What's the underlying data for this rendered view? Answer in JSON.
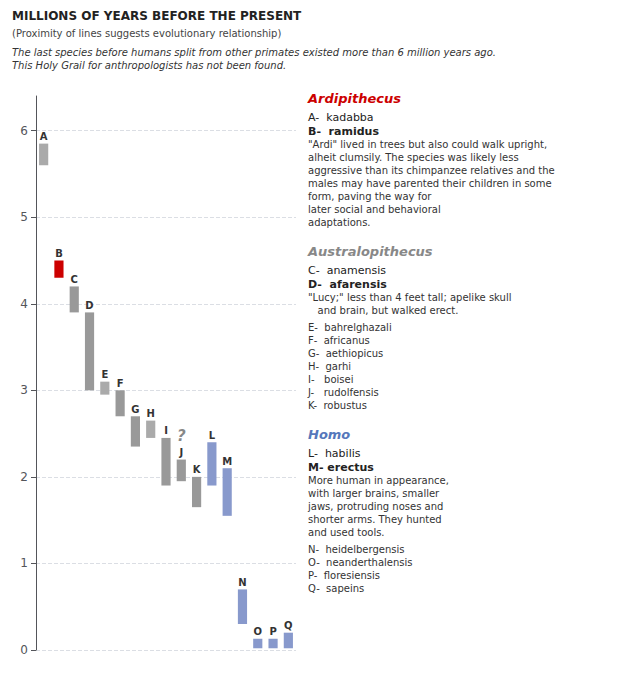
{
  "chart_data": {
    "type": "bar",
    "title": "MILLIONS OF YEARS BEFORE THE PRESENT",
    "subtitle": "(Proximity of lines suggests evolutionary relationship)",
    "categories": [
      "A",
      "B",
      "C",
      "D",
      "E",
      "F",
      "G",
      "H",
      "I",
      "J",
      "K",
      "L",
      "M",
      "N",
      "O",
      "P",
      "Q"
    ],
    "bottoms": [
      5.6,
      4.3,
      3.9,
      3.0,
      2.95,
      2.7,
      2.35,
      2.45,
      1.9,
      1.95,
      1.65,
      1.9,
      1.55,
      0.3,
      0.02,
      0.02,
      0.02
    ],
    "values": [
      5.85,
      4.5,
      4.2,
      3.9,
      3.1,
      3.0,
      2.7,
      2.65,
      2.45,
      2.2,
      2.0,
      2.4,
      2.1,
      0.7,
      0.13,
      0.13,
      0.2
    ],
    "colors": [
      "#aaaaaa",
      "#cc0000",
      "#999999",
      "#999999",
      "#aaaaaa",
      "#999999",
      "#999999",
      "#aaaaaa",
      "#999999",
      "#999999",
      "#999999",
      "#8899cc",
      "#8899cc",
      "#8899cc",
      "#8899cc",
      "#8899cc",
      "#8899cc"
    ],
    "ylim": [
      0,
      6.4
    ],
    "yticks": [
      0,
      1,
      2,
      3,
      4,
      5,
      6
    ],
    "grid": true,
    "tick_labels": "y",
    "groups": [
      {
        "name": "Ardipithecus",
        "color": "#cc0000",
        "lines": [
          "A-  kadabba",
          "B-  ramidus",
          "\"Ardi\" lived in trees but also could walk upright,\nalheit clumsily. The species was likely less\naggressive than its chimpanzee relatives and the\nmales may have parented their children in some\nform, paving the way for\nlater social and behavioral\nadaptations."
        ]
      },
      {
        "name": "Australopithecus",
        "color": "#888888",
        "lines": [
          "C-  anamensis",
          "D-  afarensis",
          "\"Lucy;\" less than 4 feet tall; apelike skull\n   and brain, but walked erect.",
          "E-  bahrelghazali\nF-  africanus\nG-  aethiopicus\nH-  garhi\nI-   boisei\nJ-   rudolfensis\nK-  robustus"
        ]
      },
      {
        "name": "Homo",
        "color": "#5577bb",
        "lines": [
          "L-  habilis",
          "M- erectus",
          "More human in appearance,\nwith larger brains, smaller\njaws, protruding noses and\nshorter arms. They hunted\nand used tools.",
          "N-  heidelbergensis\nO-  neanderthalensis\nP-  floresiensis\nQ-  sapeins"
        ]
      }
    ],
    "annotations": [
      {
        "text": "The last species before humans split from other primates existed more than 6 million years ago.\nThis Holy Grail for anthropologists has not been found."
      },
      {
        "text": "?",
        "color": "#888888",
        "category": "J"
      }
    ]
  }
}
